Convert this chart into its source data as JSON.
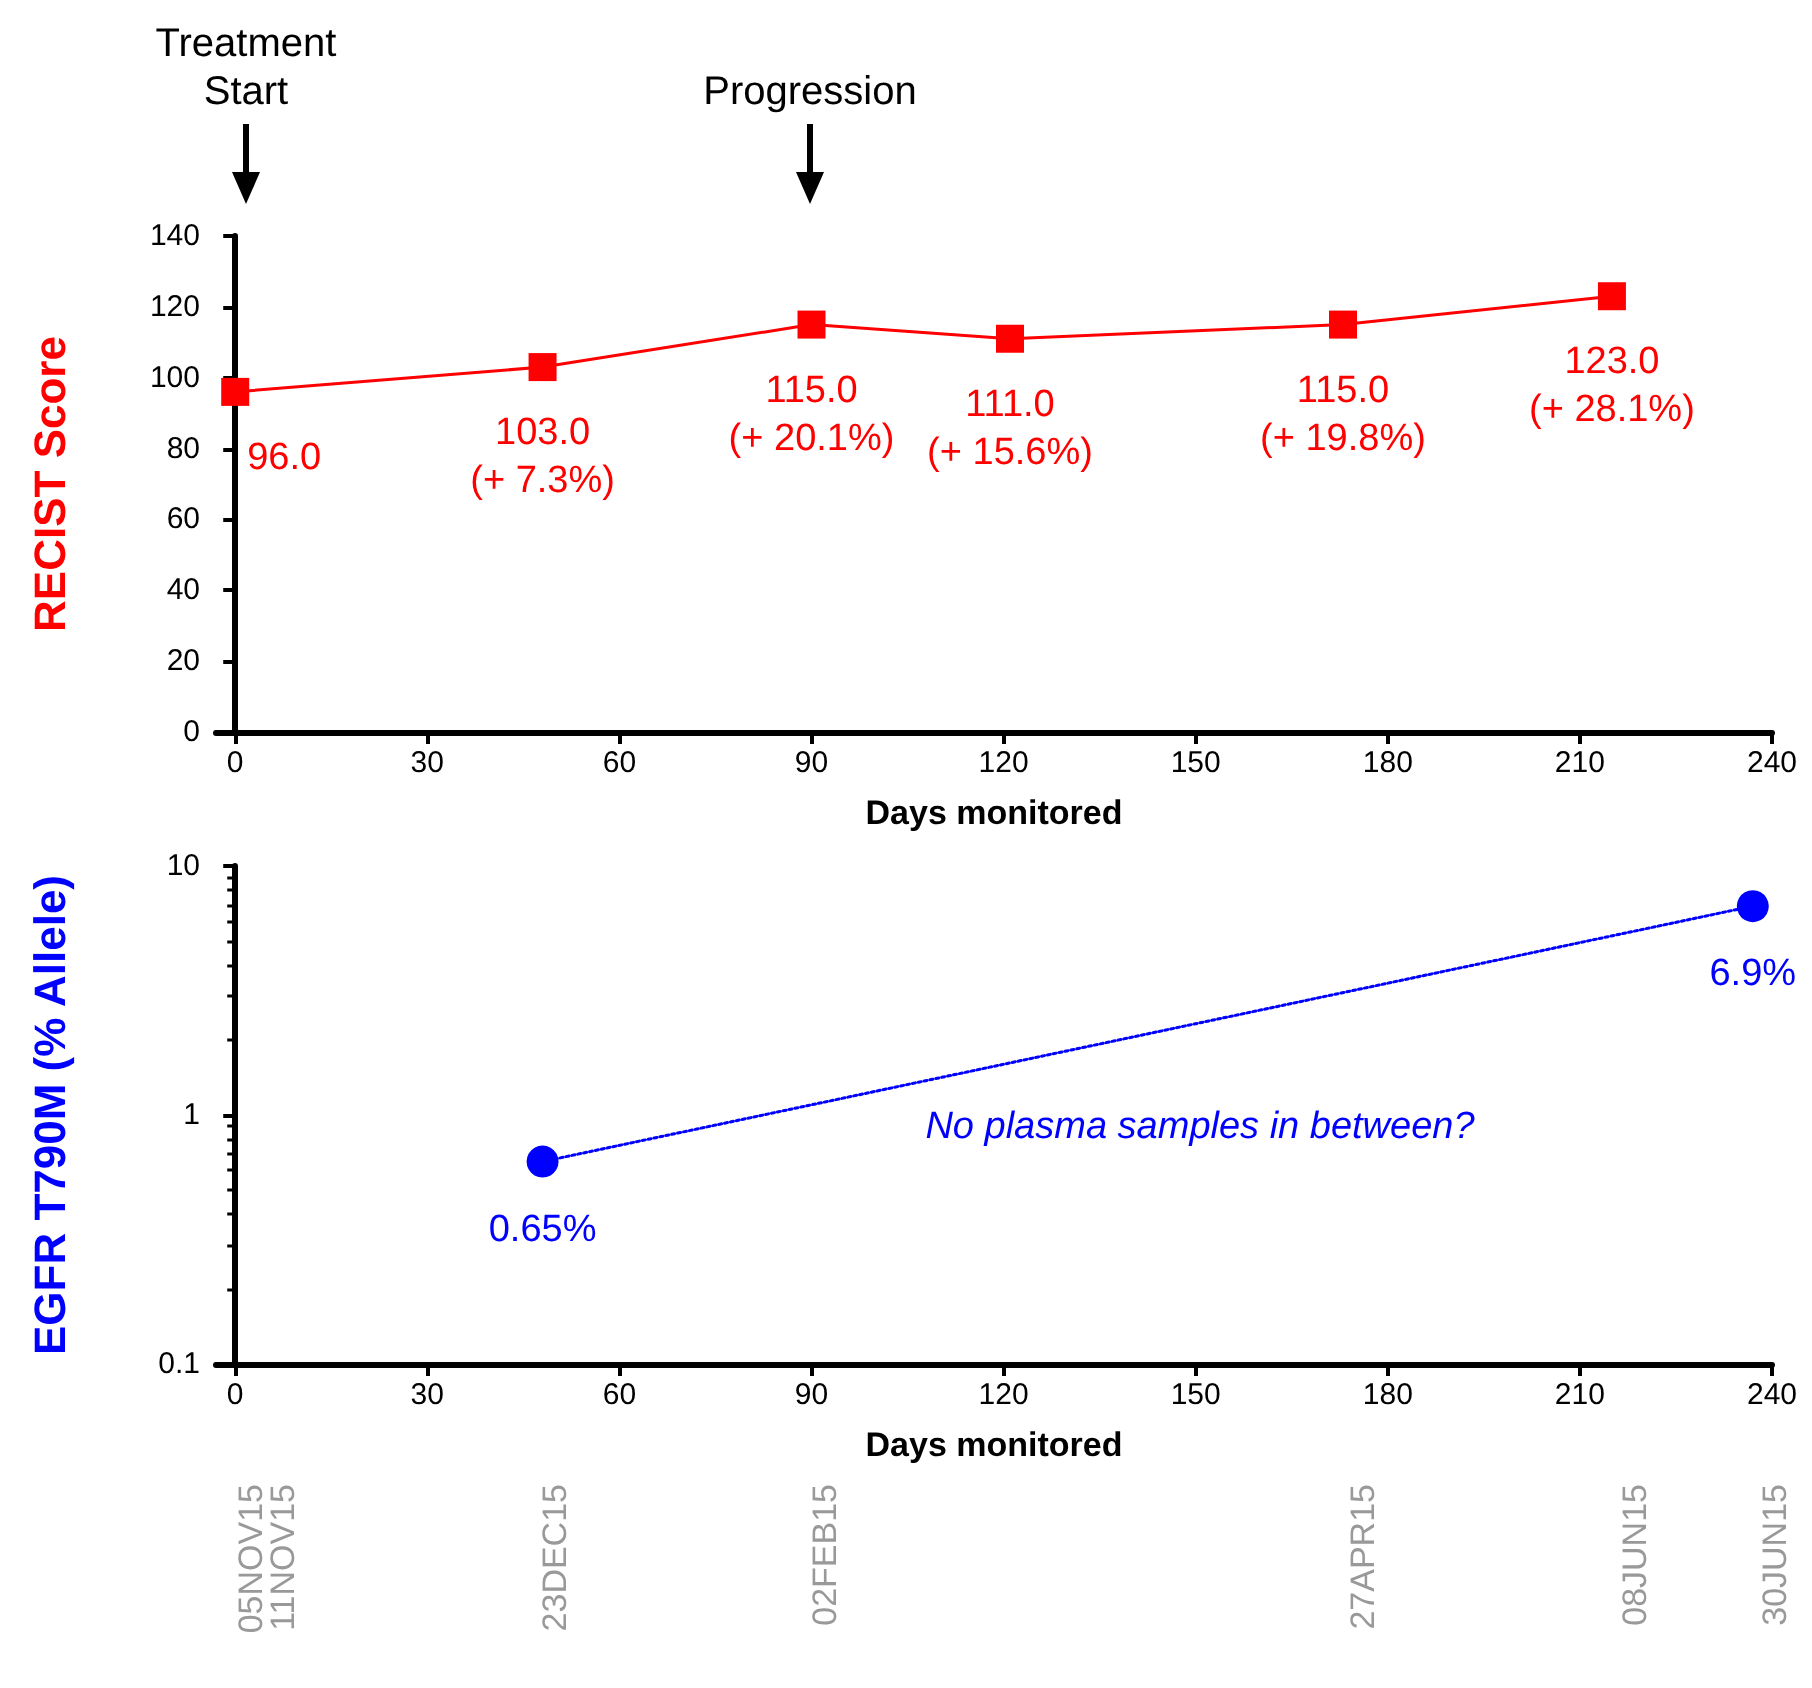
{
  "chart_data": [
    {
      "type": "line",
      "xlabel": "Days monitored",
      "ylabel": "RECIST Score",
      "xlim": [
        -3,
        240
      ],
      "xticks": [
        0,
        30,
        60,
        90,
        120,
        150,
        180,
        210,
        240
      ],
      "ylim": [
        0,
        140
      ],
      "yticks": [
        0,
        20,
        40,
        60,
        80,
        100,
        120,
        140
      ],
      "grid": false,
      "marker": "square",
      "line_style": "solid",
      "x": [
        0,
        48,
        90,
        121,
        173,
        215
      ],
      "series": [
        {
          "color": "#ff0000",
          "values": [
            96,
            103,
            115,
            111,
            115,
            123
          ],
          "value_labels": [
            "96.0",
            "103.0\n(+ 7.3%)",
            "115.0\n(+ 20.1%)",
            "111.0\n(+ 15.6%)",
            "115.0\n(+ 19.8%)",
            "123.0\n(+ 28.1%)"
          ]
        }
      ],
      "annotations": [
        "Treatment\nStart",
        "Progression"
      ]
    },
    {
      "type": "line",
      "xlabel": "Days monitored",
      "ylabel": "EGFR T790M (% Allele)",
      "xlim": [
        -3,
        240
      ],
      "xticks": [
        0,
        30,
        60,
        90,
        120,
        150,
        180,
        210,
        240
      ],
      "ylim": [
        0.1,
        10
      ],
      "yticks": [
        0.1,
        1,
        10
      ],
      "log": "y",
      "grid": false,
      "marker": "circle",
      "line_style": "dotted",
      "x": [
        48,
        237
      ],
      "series": [
        {
          "color": "#0000ff",
          "values": [
            0.65,
            6.9
          ],
          "value_labels": [
            "0.65%",
            "6.9%"
          ]
        }
      ],
      "annotations": [
        "No plasma samples in between?",
        "05NOV15",
        "11NOV15",
        "23DEC15",
        "02FEB15",
        "27APR15",
        "08JUN15",
        "30JUN15"
      ]
    }
  ]
}
